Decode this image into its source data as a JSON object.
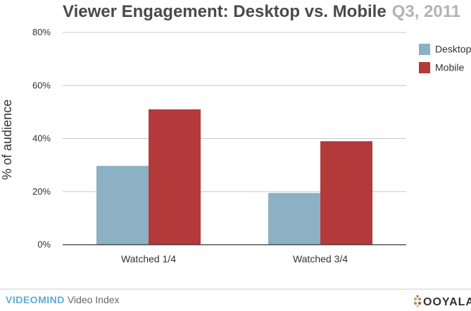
{
  "chart_data": {
    "type": "bar",
    "title": "Viewer Engagement: Desktop vs. Mobile",
    "subtitle": "Q3, 2011",
    "xlabel": "",
    "ylabel": "% of audience",
    "categories": [
      "Watched 1/4",
      "Watched 3/4"
    ],
    "series": [
      {
        "name": "Desktop",
        "color": "#8cb1c2",
        "values": [
          29.7,
          19.5
        ]
      },
      {
        "name": "Mobile",
        "color": "#b4393b",
        "values": [
          51,
          39
        ]
      }
    ],
    "ylim": [
      0,
      80
    ],
    "yticks": [
      0,
      20,
      40,
      60,
      80
    ],
    "ytick_labels": [
      "0%",
      "20%",
      "40%",
      "60%",
      "80%"
    ],
    "grid": true,
    "legend_position": "top-right"
  },
  "footer": {
    "brand_strong": "VIDEOMIND",
    "brand_light": "Video Index",
    "logo_text": "OOYALA"
  }
}
